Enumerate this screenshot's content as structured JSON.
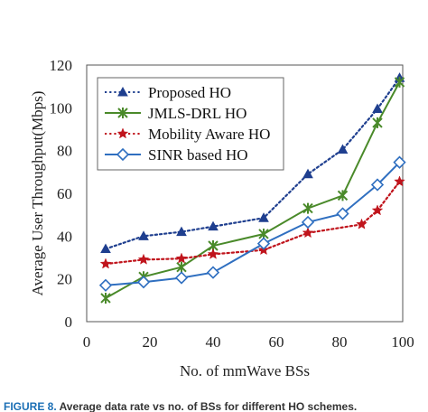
{
  "chart_data": {
    "type": "line",
    "title": "",
    "xlabel": "No. of mmWave BSs",
    "ylabel": "Average User Throughput(Mbps)",
    "xlim": [
      0,
      100
    ],
    "ylim": [
      0,
      120
    ],
    "xticks": [
      "0",
      "20",
      "40",
      "60",
      "80",
      "100"
    ],
    "yticks": [
      "0",
      "20",
      "40",
      "60",
      "80",
      "100",
      "120"
    ],
    "grid": false,
    "legend_position": "top-left",
    "series": [
      {
        "name": "Proposed HO",
        "color": "#1f3f8f",
        "line_style": "dotted",
        "marker": "triangle",
        "x": [
          6,
          18,
          30,
          40,
          56,
          70,
          81,
          92,
          99
        ],
        "y": [
          34,
          40,
          42,
          44.5,
          48.5,
          69,
          80.5,
          99.5,
          114
        ]
      },
      {
        "name": "JMLS-DRL HO",
        "color": "#4a8a2a",
        "line_style": "solid",
        "marker": "x-star",
        "x": [
          6,
          18,
          30,
          40,
          56,
          70,
          81,
          92,
          99
        ],
        "y": [
          11,
          21,
          25.5,
          35.5,
          41,
          53,
          59,
          93,
          112
        ]
      },
      {
        "name": "Mobility Aware HO",
        "color": "#c0141c",
        "line_style": "dotted",
        "marker": "star",
        "x": [
          6,
          18,
          30,
          40,
          56,
          70,
          87,
          92,
          99
        ],
        "y": [
          27,
          29,
          29.5,
          31.5,
          33.5,
          41.5,
          45.5,
          52,
          65.5
        ]
      },
      {
        "name": "SINR based HO",
        "color": "#2f6fc0",
        "line_style": "solid",
        "marker": "diamond",
        "x": [
          6,
          18,
          30,
          40,
          56,
          70,
          81,
          92,
          99
        ],
        "y": [
          17,
          18.5,
          20.5,
          23,
          36.5,
          46.5,
          50.5,
          64,
          74.5
        ]
      }
    ]
  },
  "caption": {
    "figure_label": "FIGURE 8.",
    "text": "Average data rate vs no. of BSs for different HO schemes."
  }
}
